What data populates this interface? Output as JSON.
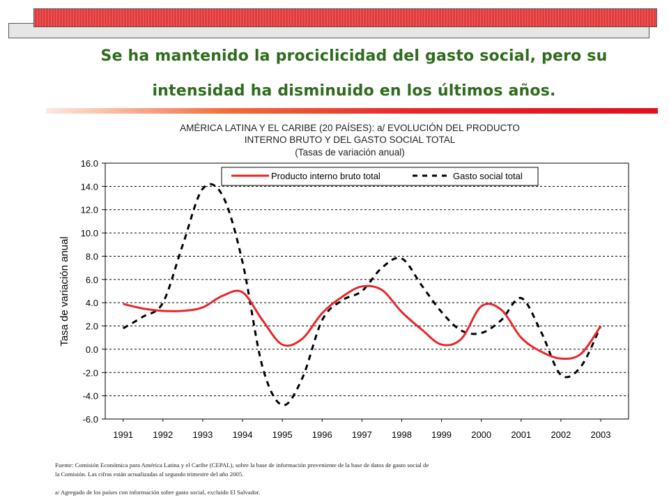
{
  "header": {
    "title_line1": "Se ha mantenido la prociclicidad del gasto social, pero su",
    "title_line2": "intensidad ha disminuido en los últimos años."
  },
  "chart_data": {
    "type": "line",
    "title_line1": "AMÉRICA LATINA Y EL CARIBE (20 PAÍSES): a/ EVOLUCIÓN DEL PRODUCTO",
    "title_line2": "INTERNO BRUTO Y DEL GASTO SOCIAL TOTAL",
    "subtitle": "(Tasas de variación anual)",
    "xlabel": "",
    "ylabel": "Tasa de variación anual",
    "x": [
      1991,
      1991.5,
      1992,
      1992.5,
      1993,
      1993.5,
      1994,
      1994.5,
      1995,
      1995.5,
      1996,
      1996.5,
      1997,
      1997.5,
      1998,
      1998.5,
      1999,
      1999.5,
      2000,
      2000.5,
      2001,
      2001.5,
      2002,
      2002.5,
      2003
    ],
    "x_tick_labels": [
      "1991",
      "1992",
      "1993",
      "1994",
      "1995",
      "1996",
      "1997",
      "1998",
      "1999",
      "2000",
      "2001",
      "2002",
      "2003"
    ],
    "y_tick_labels": [
      "16.0",
      "14.0",
      "12.0",
      "10.0",
      "8.0",
      "6.0",
      "4.0",
      "2.0",
      "0.0",
      "-2.0",
      "-4.0",
      "-6.0"
    ],
    "ylim": [
      -6,
      16
    ],
    "grid": "horizontal dashed",
    "legend_position": "top",
    "series": [
      {
        "name": "Producto interno bruto total",
        "color": "#e8262a",
        "style": "solid",
        "values": [
          3.9,
          3.5,
          3.3,
          3.3,
          3.6,
          4.6,
          4.9,
          2.5,
          0.4,
          0.9,
          3.1,
          4.5,
          5.4,
          5.1,
          3.2,
          1.7,
          0.4,
          0.9,
          3.7,
          3.4,
          1.0,
          -0.2,
          -0.8,
          -0.4,
          2.0
        ]
      },
      {
        "name": "Gasto social total",
        "color": "#000000",
        "style": "dashed",
        "values": [
          1.8,
          2.8,
          4.0,
          9.0,
          13.8,
          13.2,
          7.5,
          -1.5,
          -4.8,
          -2.5,
          2.5,
          4.2,
          5.0,
          7.0,
          7.8,
          5.5,
          3.2,
          1.6,
          1.4,
          2.5,
          4.4,
          1.5,
          -2.2,
          -1.5,
          2.0
        ]
      }
    ]
  },
  "footnotes": {
    "source_line1": "Fuente: Comisión Económica para América Latina y el Caribe (CEPAL), sobre la base de información proveniente de la base de datos de gasto social de",
    "source_line2": "la Comisión. Las cifras están actualizadas al segundo trimestre del año 2005.",
    "note_a": "a/ Agregado de los países con información sobre gasto social, excluido El Salvador."
  }
}
